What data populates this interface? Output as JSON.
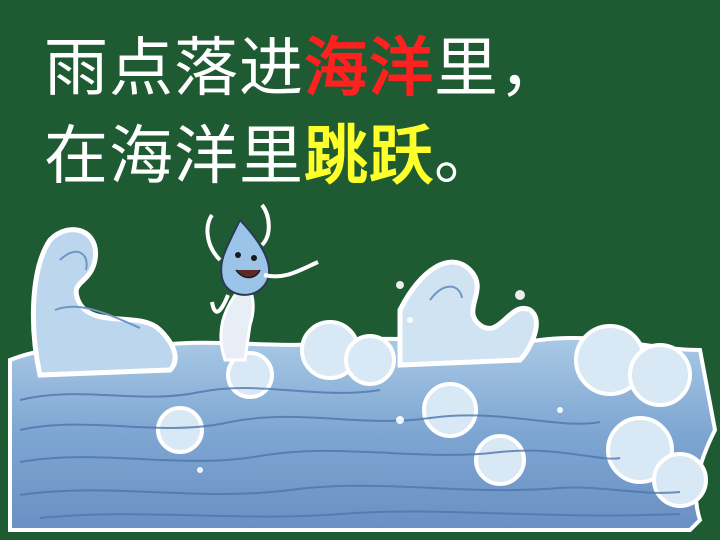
{
  "slide": {
    "line1": {
      "plain": "雨点落进",
      "highlight": "海洋",
      "rest": "里，"
    },
    "line2": {
      "plain": "在海洋里",
      "highlight": "跳跃",
      "rest": "。"
    }
  },
  "colors": {
    "background": "#1e5a32",
    "text": "#ffffff",
    "highlight_red": "#ff2020",
    "highlight_yellow": "#ffff2a",
    "wave_light": "#cfe3f2",
    "wave_mid": "#8fb6d9",
    "wave_dark": "#5f86bb"
  },
  "illustration": {
    "subject": "raindrop-character-on-ocean-waves"
  }
}
